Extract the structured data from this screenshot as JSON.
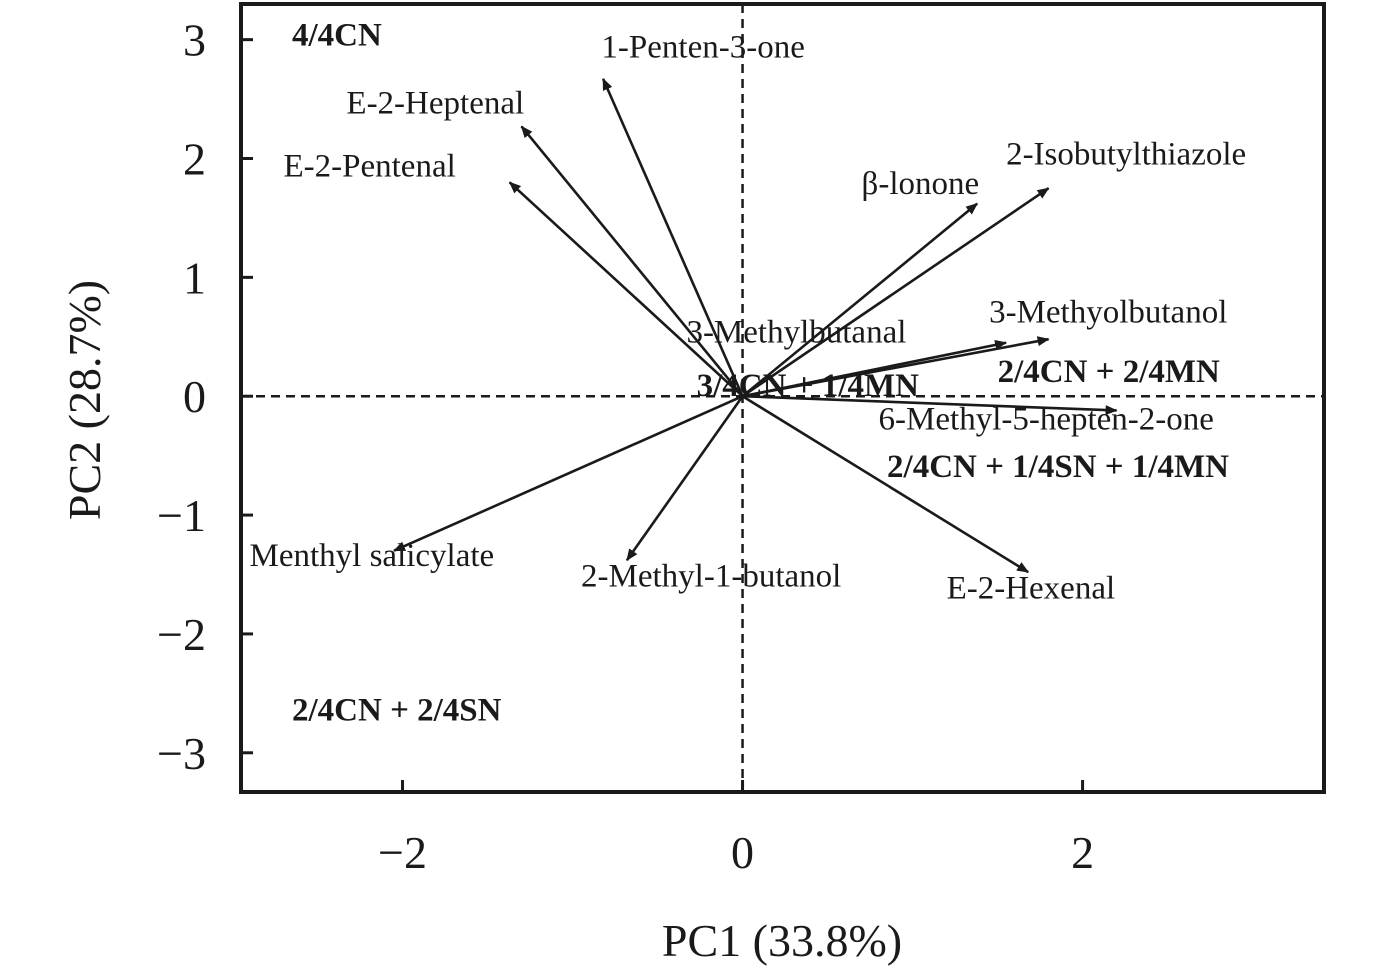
{
  "chart_data": {
    "type": "scatter",
    "subtype": "pca-biplot",
    "xlabel": "PC1 (33.8%)",
    "ylabel": "PC2 (28.7%)",
    "xlim": [
      -2.95,
      3.42
    ],
    "ylim": [
      -3.33,
      3.3
    ],
    "xticks": [
      -2,
      0,
      2
    ],
    "xtick_labels": [
      "−2",
      "0",
      "2"
    ],
    "yticks": [
      -3,
      -2,
      -1,
      0,
      1,
      2,
      3
    ],
    "ytick_labels": [
      "−3",
      "−2",
      "−1",
      "0",
      "1",
      "2",
      "3"
    ],
    "reference_lines": {
      "x": 0,
      "y": 0,
      "style": "dashed"
    },
    "grid": false,
    "loadings": [
      {
        "label": "1-Penten-3-one",
        "x": -0.82,
        "y": 2.67,
        "lx": -0.83,
        "ly": 2.85,
        "anchor": "start"
      },
      {
        "label": "E-2-Heptenal",
        "x": -1.3,
        "y": 2.27,
        "lx": -2.33,
        "ly": 2.38,
        "anchor": "start"
      },
      {
        "label": "E-2-Pentenal",
        "x": -1.37,
        "y": 1.8,
        "lx": -2.7,
        "ly": 1.85,
        "anchor": "start"
      },
      {
        "label": "β-lonone",
        "x": 1.38,
        "y": 1.62,
        "lx": 0.7,
        "ly": 1.7,
        "anchor": "start"
      },
      {
        "label": "2-Isobutylthiazole",
        "x": 1.8,
        "y": 1.75,
        "lx": 1.55,
        "ly": 1.95,
        "anchor": "start"
      },
      {
        "label": "3-Methylbutanal",
        "x": 1.55,
        "y": 0.45,
        "lx": -0.33,
        "ly": 0.45,
        "anchor": "start"
      },
      {
        "label": "3-Methyolbutanol",
        "x": 1.8,
        "y": 0.48,
        "lx": 1.45,
        "ly": 0.62,
        "anchor": "start"
      },
      {
        "label": "6-Methyl-5-hepten-2-one",
        "x": 2.2,
        "y": -0.12,
        "lx": 0.8,
        "ly": -0.28,
        "anchor": "start"
      },
      {
        "label": "E-2-Hexenal",
        "x": 1.68,
        "y": -1.48,
        "lx": 1.2,
        "ly": -1.7,
        "anchor": "start"
      },
      {
        "label": "2-Methyl-1-butanol",
        "x": -0.68,
        "y": -1.38,
        "lx": -0.95,
        "ly": -1.6,
        "anchor": "start"
      },
      {
        "label": "Menthyl salicylate",
        "x": -2.05,
        "y": -1.3,
        "lx": -2.9,
        "ly": -1.43,
        "anchor": "start"
      }
    ],
    "groups": [
      {
        "label": "4/4CN",
        "x": -2.65,
        "y": 2.95,
        "anchor": "start"
      },
      {
        "label": "3/4CN + 1/4MN",
        "x": -0.27,
        "y": 0.0,
        "anchor": "start"
      },
      {
        "label": "2/4CN + 2/4MN",
        "x": 1.5,
        "y": 0.12,
        "anchor": "start"
      },
      {
        "label": "2/4CN + 1/4SN + 1/4MN",
        "x": 0.85,
        "y": -0.68,
        "anchor": "start"
      },
      {
        "label": "2/4CN + 2/4SN",
        "x": -2.65,
        "y": -2.73,
        "anchor": "start"
      }
    ],
    "colors": {
      "ink": "#1a1a1a",
      "background": "#ffffff"
    }
  }
}
